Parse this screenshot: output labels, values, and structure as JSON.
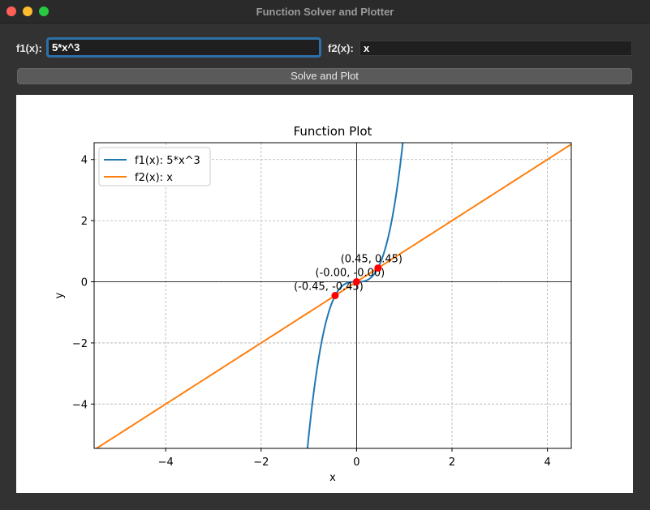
{
  "window": {
    "title": "Function Solver and Plotter"
  },
  "inputs": {
    "f1": {
      "label": "f1(x):",
      "value": "5*x^3"
    },
    "f2": {
      "label": "f2(x):",
      "value": "x"
    }
  },
  "button": {
    "label": "Solve and Plot"
  },
  "chart_data": {
    "type": "line",
    "title": "Function Plot",
    "xlabel": "x",
    "ylabel": "y",
    "xlim": [
      -5.5,
      4.5
    ],
    "ylim": [
      -5.45,
      4.55
    ],
    "xticks": [
      -4,
      -2,
      0,
      2,
      4
    ],
    "xtick_labels": [
      "−4",
      "−2",
      "0",
      "2",
      "4"
    ],
    "yticks": [
      -4,
      -2,
      0,
      2,
      4
    ],
    "ytick_labels": [
      "−4",
      "−2",
      "0",
      "2",
      "4"
    ],
    "grid": true,
    "legend_position": "top-left",
    "series": [
      {
        "name": "f1(x): 5*x^3",
        "function": "5*x^3",
        "color": "#1f77b4"
      },
      {
        "name": "f2(x): x",
        "function": "x",
        "color": "#ff7f0e"
      }
    ],
    "intersection_points": [
      {
        "x": -0.45,
        "y": -0.45,
        "label": "(-0.45, -0.45)"
      },
      {
        "x": 0.0,
        "y": 0.0,
        "label": "(-0.00, -0.00)"
      },
      {
        "x": 0.45,
        "y": 0.45,
        "label": "(0.45, 0.45)"
      }
    ],
    "point_color": "#ff0000"
  }
}
